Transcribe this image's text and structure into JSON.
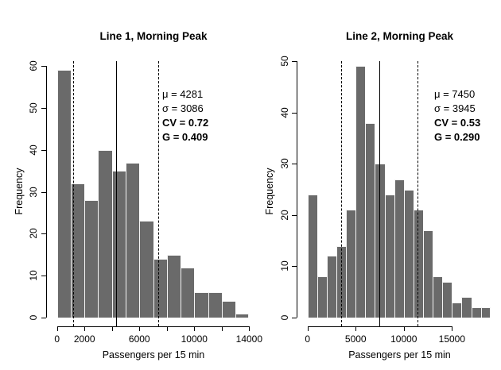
{
  "figure": {
    "background": "#ffffff",
    "bar_fill": "#6a6a6a",
    "bar_border": "#f4f4f4",
    "line_color": "#000000",
    "text_color": "#000000"
  },
  "chart_data": [
    {
      "type": "bar",
      "subtype": "histogram",
      "title": "Line 1, Morning Peak",
      "xlabel": "Passengers per 15 min",
      "ylabel": "Frequency",
      "bin_start": 0,
      "bin_width": 1000,
      "counts": [
        59,
        32,
        28,
        40,
        35,
        37,
        23,
        14,
        15,
        12,
        6,
        6,
        4,
        1
      ],
      "xlim": [
        0,
        14000
      ],
      "ylim": [
        0,
        60
      ],
      "x_ticks": [
        {
          "v": 0,
          "label": "0"
        },
        {
          "v": 2000,
          "label": "2000"
        },
        {
          "v": 4000,
          "label": ""
        },
        {
          "v": 6000,
          "label": "6000"
        },
        {
          "v": 8000,
          "label": ""
        },
        {
          "v": 10000,
          "label": "10000"
        },
        {
          "v": 12000,
          "label": ""
        },
        {
          "v": 14000,
          "label": "14000"
        }
      ],
      "y_ticks": [
        0,
        10,
        20,
        30,
        40,
        50,
        60
      ],
      "mean": 4281,
      "sd": 3086,
      "vlines": [
        {
          "x": 1195,
          "style": "dashed",
          "meaning": "mean-minus-sd"
        },
        {
          "x": 4281,
          "style": "solid",
          "meaning": "mean"
        },
        {
          "x": 7367,
          "style": "dashed",
          "meaning": "mean-plus-sd"
        }
      ],
      "stats": [
        {
          "text": "μ = 4281",
          "bold": false
        },
        {
          "text": "σ = 3086",
          "bold": false
        },
        {
          "text": "CV = 0.72",
          "bold": true
        },
        {
          "text": "G = 0.409",
          "bold": true
        }
      ]
    },
    {
      "type": "bar",
      "subtype": "histogram",
      "title": "Line 2, Morning Peak",
      "xlabel": "Passengers per 15 min",
      "ylabel": "Frequency",
      "bin_start": 0,
      "bin_width": 1000,
      "counts": [
        24,
        8,
        12,
        14,
        21,
        49,
        38,
        30,
        24,
        27,
        25,
        21,
        17,
        8,
        7,
        3,
        4,
        2,
        2
      ],
      "xlim": [
        0,
        19000
      ],
      "ylim": [
        0,
        50
      ],
      "x_ticks": [
        {
          "v": 0,
          "label": "0"
        },
        {
          "v": 5000,
          "label": "5000"
        },
        {
          "v": 10000,
          "label": "10000"
        },
        {
          "v": 15000,
          "label": "15000"
        }
      ],
      "y_ticks": [
        0,
        10,
        20,
        30,
        40,
        50
      ],
      "mean": 7450,
      "sd": 3945,
      "vlines": [
        {
          "x": 3505,
          "style": "dashed",
          "meaning": "mean-minus-sd"
        },
        {
          "x": 7450,
          "style": "solid",
          "meaning": "mean"
        },
        {
          "x": 11395,
          "style": "dashed",
          "meaning": "mean-plus-sd"
        }
      ],
      "stats": [
        {
          "text": "μ = 7450",
          "bold": false
        },
        {
          "text": "σ = 3945",
          "bold": false
        },
        {
          "text": "CV = 0.53",
          "bold": true
        },
        {
          "text": "G = 0.290",
          "bold": true
        }
      ]
    }
  ]
}
